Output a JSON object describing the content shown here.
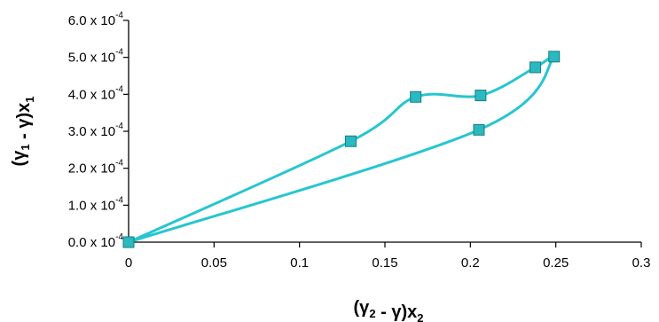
{
  "chart_data": {
    "type": "scatter",
    "title": "",
    "xlabel": {
      "parts": [
        {
          "text": "(γ",
          "sub": false
        },
        {
          "text": "2",
          "sub": true
        },
        {
          "text": " - γ)x",
          "sub": false
        },
        {
          "text": "2",
          "sub": true
        }
      ]
    },
    "ylabel": {
      "parts": [
        {
          "text": "(γ",
          "sub": false
        },
        {
          "text": "1",
          "sub": true
        },
        {
          "text": " - γ)x",
          "sub": false
        },
        {
          "text": "1",
          "sub": true
        }
      ]
    },
    "xlim": [
      0,
      0.3
    ],
    "ylim": [
      0,
      0.0006
    ],
    "x_ticks": [
      {
        "value": 0,
        "label": "0"
      },
      {
        "value": 0.05,
        "label": "0.05"
      },
      {
        "value": 0.1,
        "label": "0.1"
      },
      {
        "value": 0.15,
        "label": "0.15"
      },
      {
        "value": 0.2,
        "label": "0.2"
      },
      {
        "value": 0.25,
        "label": "0.25"
      },
      {
        "value": 0.3,
        "label": "0.3"
      }
    ],
    "y_ticks": [
      {
        "value": 0,
        "mantissa": "0.0 x 10",
        "exponent": "-4"
      },
      {
        "value": 0.0001,
        "mantissa": "1.0 x 10",
        "exponent": "-4"
      },
      {
        "value": 0.0002,
        "mantissa": "2.0 x 10",
        "exponent": "-4"
      },
      {
        "value": 0.0003,
        "mantissa": "3.0 x 10",
        "exponent": "-4"
      },
      {
        "value": 0.0004,
        "mantissa": "4.0 x 10",
        "exponent": "-4"
      },
      {
        "value": 0.0005,
        "mantissa": "5.0 x 10",
        "exponent": "-4"
      },
      {
        "value": 0.0006,
        "mantissa": "6.0 x 10",
        "exponent": "-4"
      }
    ],
    "grid": false,
    "legend": "none",
    "color": "#26c6d0",
    "marker_color": "#2ab9bf",
    "marker_stroke": "#1a7d82",
    "series": [
      {
        "marker": "square",
        "points": [
          [
            0,
            0
          ],
          [
            0.13,
            0.000273
          ],
          [
            0.168,
            0.000393
          ],
          [
            0.206,
            0.000397
          ],
          [
            0.238,
            0.000473
          ],
          [
            0.249,
            0.000502
          ],
          [
            0.205,
            0.000304
          ],
          [
            0,
            0
          ]
        ]
      }
    ]
  }
}
